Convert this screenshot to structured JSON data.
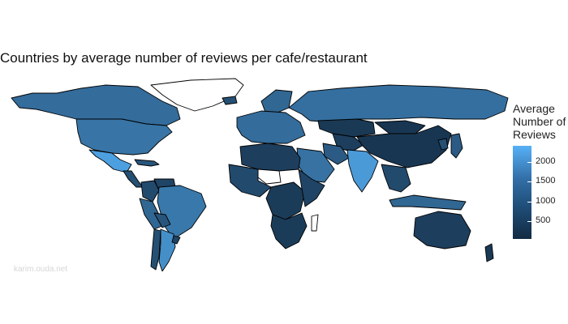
{
  "chart_data": {
    "type": "choropleth",
    "title": "Countries by average number of reviews per cafe/restaurant",
    "legend": {
      "title_lines": [
        "Average",
        "Number of",
        "Reviews"
      ],
      "ticks": [
        500,
        1000,
        1500,
        2000
      ],
      "range": [
        60,
        2400
      ],
      "low_color": "#132b43",
      "high_color": "#56b1f7",
      "position": "right"
    },
    "values_by_region": {
      "canada": 1200,
      "usa": 1350,
      "mexico": 2100,
      "central_america": 700,
      "colombia": 600,
      "venezuela": 500,
      "brazil": 1400,
      "peru": 1100,
      "bolivia": 800,
      "chile": 700,
      "argentina": 1800,
      "uruguay": 500,
      "greenland": null,
      "iceland": 700,
      "scandinavia": 1100,
      "western_europe": 1200,
      "russia": 1250,
      "kazakhstan": 300,
      "central_asia": 400,
      "china": 250,
      "mongolia": 250,
      "india": 2000,
      "arabia": 1300,
      "iran": 900,
      "north_africa": 400,
      "west_africa": 600,
      "central_africa": 350,
      "east_africa": 500,
      "southern_africa": 350,
      "madagascar": null,
      "southeast_asia": 600,
      "indonesia": 1100,
      "japan": 900,
      "korea": 700,
      "australia": 400,
      "new_zealand": 300,
      "caribbean": 800,
      "sahara_gaps": null
    },
    "watermark": "karim.ouda.net"
  }
}
